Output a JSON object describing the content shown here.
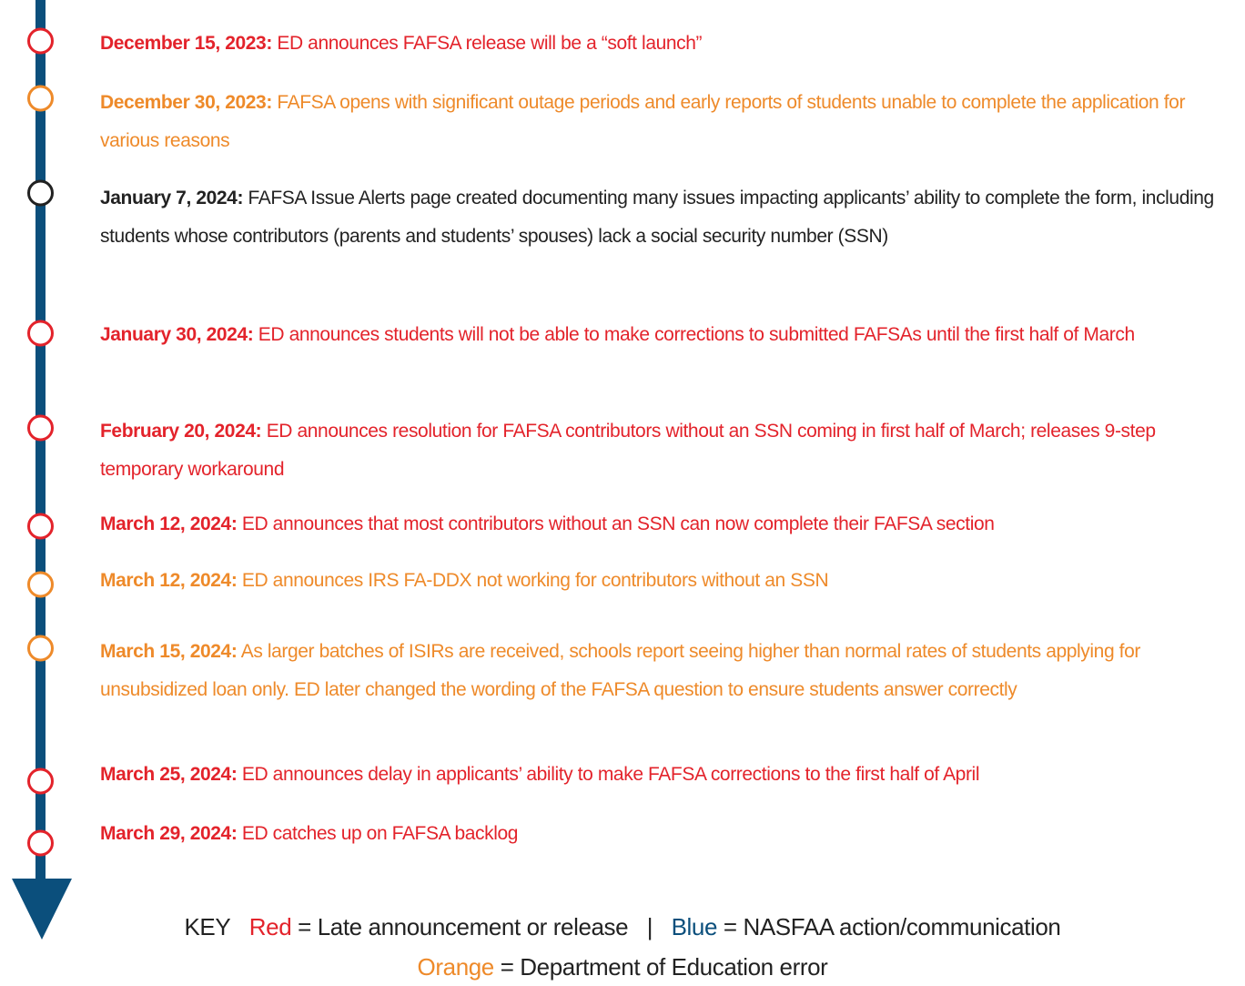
{
  "events": [
    {
      "date": "December 15, 2023:",
      "text": "ED announces FAFSA release will be a “soft launch”",
      "color": "#e3232b"
    },
    {
      "date": "December 30, 2023:",
      "text": "FAFSA opens with significant outage periods and early reports of students unable to complete the application for various reasons",
      "color": "#ee8a2a"
    },
    {
      "date": "January 7, 2024:",
      "text": "FAFSA Issue Alerts page created documenting many issues impacting applicants’ ability to complete the form, including students whose contributors (parents and students’ spouses) lack a social security number (SSN)",
      "color": "#222222"
    },
    {
      "date": "January 30, 2024:",
      "text": "ED announces students will not be able to make corrections to submitted FAFSAs until the first half of March",
      "color": "#e3232b"
    },
    {
      "date": "February 20, 2024:",
      "text": "ED announces resolution for FAFSA contributors without an SSN coming in first half of March; releases 9-step temporary workaround",
      "color": "#e3232b"
    },
    {
      "date": "March 12, 2024:",
      "text": "ED announces that most contributors without an SSN can now complete their FAFSA section",
      "color": "#e3232b"
    },
    {
      "date": "March 12, 2024:",
      "text": "ED announces IRS FA-DDX not working for contributors without an SSN",
      "color": "#ee8a2a"
    },
    {
      "date": "March 15, 2024:",
      "text": "As larger batches of ISIRs are received, schools report seeing higher than normal rates of students applying for unsubsidized loan only. ED later changed the wording of the FAFSA question to ensure students answer correctly",
      "color": "#ee8a2a"
    },
    {
      "date": "March 25, 2024:",
      "text": "ED announces delay in applicants’ ability to make FAFSA corrections to the first half of April",
      "color": "#e3232b"
    },
    {
      "date": "March 29, 2024:",
      "text": "ED catches up on FAFSA backlog",
      "color": "#e3232b"
    }
  ],
  "key": {
    "label": "KEY",
    "red": "Red",
    "red_text": "= Late announcement or release",
    "separator": "|",
    "blue": "Blue",
    "blue_text": "= NASFAA action/communication",
    "orange": "Orange",
    "orange_text": "= Department of Education error",
    "red_color": "#e3232b",
    "blue_color": "#0b4f7c",
    "orange_color": "#ee8a2a"
  },
  "timeline_color": "#0b4f7c"
}
